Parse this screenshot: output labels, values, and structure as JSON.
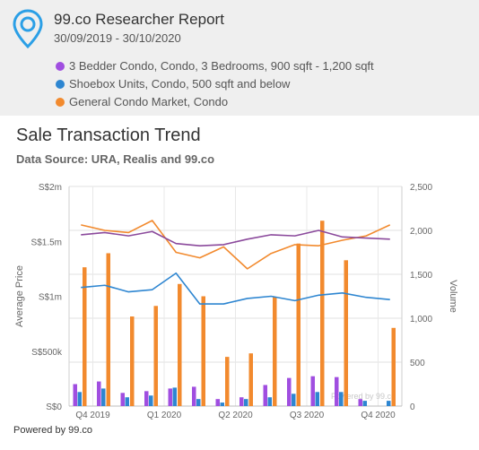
{
  "header": {
    "title": "99.co Researcher Report",
    "date_range": "30/09/2019 - 30/10/2020",
    "legend": [
      {
        "label": "3 Bedder Condo, Condo, 3 Bedrooms, 900 sqft - 1,200 sqft",
        "color": "#a04ee0"
      },
      {
        "label": "Shoebox Units, Condo, 500 sqft and below",
        "color": "#2e86d1"
      },
      {
        "label": "General Condo Market, Condo",
        "color": "#f28a2e"
      }
    ],
    "logo_icon": "map-pin-icon"
  },
  "chart_title": "Sale Transaction Trend",
  "chart_source": "Data Source: URA, Realis and 99.co",
  "footer": "Powered by 99.co",
  "chart_data": {
    "type": "bar",
    "x_ticks": [
      "Q4 2019",
      "Q1 2020",
      "Q2 2020",
      "Q3 2020",
      "Q4 2020"
    ],
    "x_tick_positions": [
      1,
      4,
      7,
      10,
      13
    ],
    "periods": [
      0,
      1,
      2,
      3,
      4,
      5,
      6,
      7,
      8,
      9,
      10,
      11,
      12,
      13
    ],
    "ylabel": "Average Price",
    "y2label": "Volume",
    "ylim": [
      0,
      2000000
    ],
    "y_ticks": [
      "S$0",
      "S$500k",
      "S$1m",
      "S$1.5m",
      "S$2m"
    ],
    "y2lim": [
      0,
      2500
    ],
    "y2_ticks": [
      "0",
      "500",
      "1,000",
      "1,500",
      "2,000",
      "2,500"
    ],
    "grid": true,
    "bar_series": [
      {
        "color": "#a04ee0",
        "values": [
          250,
          280,
          150,
          170,
          200,
          220,
          80,
          100,
          240,
          320,
          340,
          330,
          80,
          null
        ]
      },
      {
        "color": "#2e86d1",
        "values": [
          160,
          200,
          100,
          120,
          210,
          80,
          40,
          80,
          100,
          140,
          160,
          160,
          60,
          60
        ]
      },
      {
        "color": "#f28a2e",
        "values": [
          1580,
          1740,
          1020,
          1140,
          1390,
          1250,
          560,
          600,
          1240,
          1850,
          2110,
          1660,
          null,
          890
        ]
      }
    ],
    "line_series": [
      {
        "color": "#f28a2e",
        "values": [
          1650000,
          1600000,
          1580000,
          1690000,
          1400000,
          1350000,
          1450000,
          1250000,
          1390000,
          1470000,
          1460000,
          1510000,
          1550000,
          1650000
        ]
      },
      {
        "color": "#8b4a9c",
        "values": [
          1560000,
          1580000,
          1550000,
          1590000,
          1480000,
          1460000,
          1470000,
          1520000,
          1560000,
          1550000,
          1600000,
          1540000,
          1530000,
          1520000
        ]
      },
      {
        "color": "#2e86d1",
        "values": [
          1080000,
          1100000,
          1040000,
          1060000,
          1210000,
          930000,
          930000,
          980000,
          1000000,
          960000,
          1010000,
          1030000,
          990000,
          970000
        ]
      }
    ],
    "watermark": "Powered by 99.co"
  }
}
